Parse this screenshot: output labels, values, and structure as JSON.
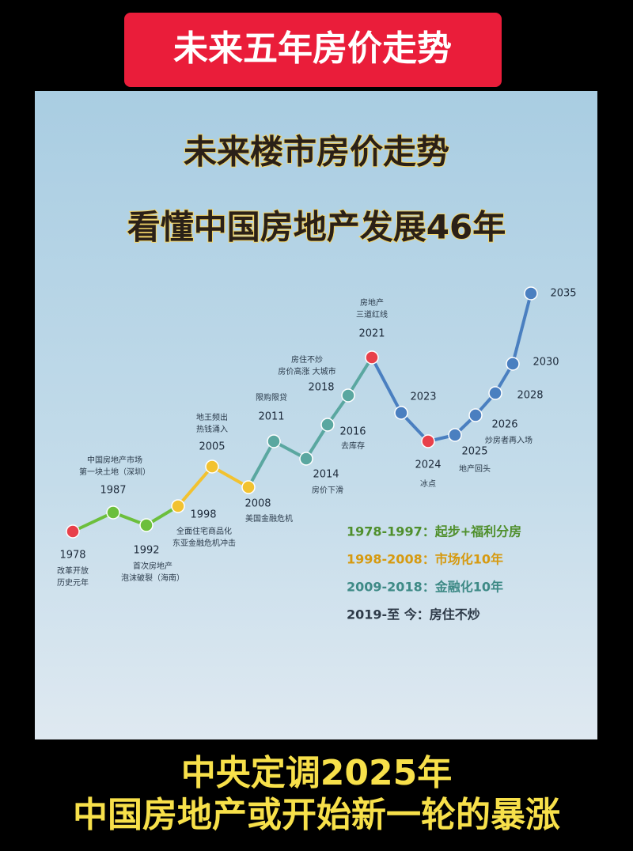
{
  "header": "未来五年房价走势",
  "title": [
    "未来楼市房价走势",
    "看懂中国房地产发展46年"
  ],
  "timeline": [
    {
      "year": "1978",
      "note": [
        "改革开放",
        "历史元年"
      ]
    },
    {
      "year": "1987",
      "note": [
        "中国房地产市场",
        "第一块土地（深圳）"
      ]
    },
    {
      "year": "1992",
      "note": [
        "首次房地产",
        "泡沫破裂（海南）"
      ]
    },
    {
      "year": "1998",
      "note": [
        "全面住宅商品化",
        "东亚金融危机冲击"
      ]
    },
    {
      "year": "2005",
      "note": [
        "地王频出",
        "热钱涌入"
      ]
    },
    {
      "year": "2008",
      "note": [
        "美国金融危机"
      ]
    },
    {
      "year": "2011",
      "note": [
        "限购限贷"
      ]
    },
    {
      "year": "2014",
      "note": [
        "房价下滑"
      ]
    },
    {
      "year": "2016",
      "note": [
        "去库存"
      ]
    },
    {
      "year": "2018",
      "note": [
        "房住不炒",
        "房价高涨 大城市"
      ]
    },
    {
      "year": "2021",
      "note": [
        "房地产",
        "三道红线"
      ]
    },
    {
      "year": "2023"
    },
    {
      "year": "2024",
      "note": [
        "冰点"
      ]
    },
    {
      "year": "2025",
      "note": [
        "地产回头"
      ]
    },
    {
      "year": "2026",
      "note": [
        "炒房者再入场"
      ]
    },
    {
      "year": "2028"
    },
    {
      "year": "2030"
    },
    {
      "year": "2035"
    }
  ],
  "legend": [
    "1978-1997：起步+福利分房",
    "1998-2008：市场化10年",
    "2009-2018：金融化10年",
    "2019-至 今：房住不炒"
  ],
  "footer": [
    "中央定调2025年",
    "中国房地产或开始新一轮的暴涨"
  ]
}
